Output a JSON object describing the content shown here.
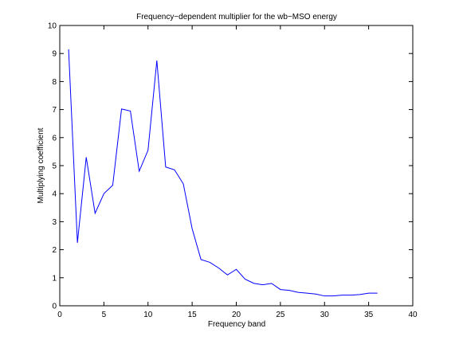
{
  "chart_data": {
    "type": "line",
    "title": "Frequency−dependent multiplier for the wb−MSO energy",
    "xlabel": "Frequency band",
    "ylabel": "Multiplying coefficient",
    "xlim": [
      0,
      40
    ],
    "ylim": [
      0,
      10
    ],
    "xticks": [
      0,
      5,
      10,
      15,
      20,
      25,
      30,
      35,
      40
    ],
    "yticks": [
      0,
      1,
      2,
      3,
      4,
      5,
      6,
      7,
      8,
      9,
      10
    ],
    "grid": false,
    "line_color": "#0000ff",
    "series": [
      {
        "x": [
          1,
          2,
          3,
          4,
          5,
          6,
          7,
          8,
          9,
          10,
          11,
          12,
          13,
          14,
          15,
          16,
          17,
          18,
          19,
          20,
          21,
          22,
          23,
          24,
          25,
          26,
          27,
          28,
          29,
          30,
          31,
          32,
          33,
          34,
          35,
          36
        ],
        "values": [
          9.15,
          2.25,
          5.3,
          3.3,
          4.0,
          4.3,
          7.02,
          6.95,
          4.8,
          5.55,
          8.75,
          4.95,
          4.85,
          4.35,
          2.75,
          1.65,
          1.55,
          1.35,
          1.1,
          1.3,
          0.95,
          0.8,
          0.75,
          0.8,
          0.58,
          0.55,
          0.48,
          0.45,
          0.42,
          0.35,
          0.35,
          0.38,
          0.38,
          0.4,
          0.45,
          0.45
        ]
      }
    ]
  }
}
